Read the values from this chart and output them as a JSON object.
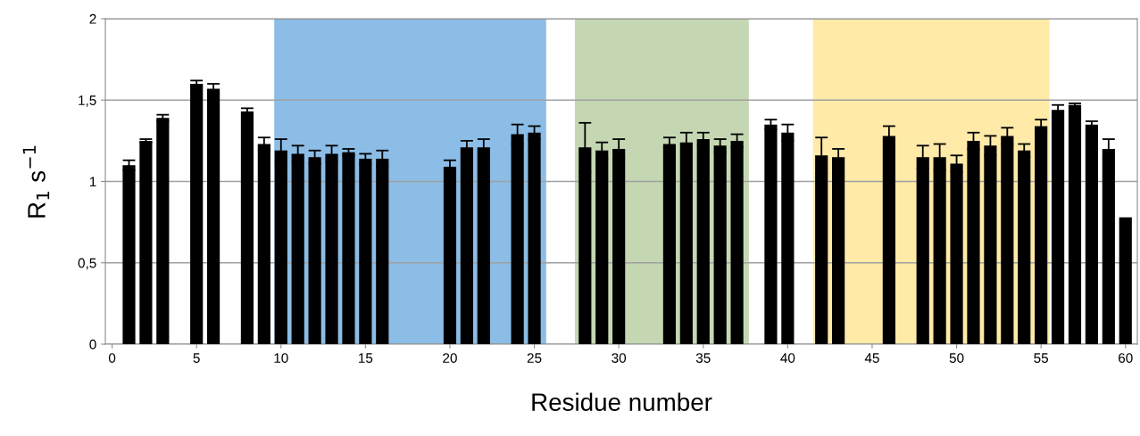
{
  "chart_data": {
    "type": "bar",
    "xlabel": "Residue number",
    "ylabel": "R$_{1}$ s$^{−1}$",
    "x": [
      1,
      2,
      3,
      5,
      6,
      8,
      9,
      10,
      11,
      12,
      13,
      14,
      15,
      16,
      20,
      21,
      22,
      24,
      25,
      28,
      29,
      30,
      33,
      34,
      35,
      36,
      37,
      39,
      40,
      42,
      43,
      46,
      48,
      49,
      50,
      51,
      52,
      53,
      54,
      55,
      56,
      57,
      58,
      59,
      60
    ],
    "values": [
      1.1,
      1.25,
      1.39,
      1.6,
      1.57,
      1.43,
      1.23,
      1.19,
      1.17,
      1.15,
      1.17,
      1.18,
      1.14,
      1.14,
      1.09,
      1.21,
      1.21,
      1.29,
      1.3,
      1.21,
      1.19,
      1.2,
      1.23,
      1.24,
      1.26,
      1.22,
      1.25,
      1.35,
      1.3,
      1.16,
      1.15,
      1.28,
      1.15,
      1.15,
      1.11,
      1.25,
      1.22,
      1.28,
      1.19,
      1.34,
      1.44,
      1.47,
      1.35,
      1.2,
      0.78
    ],
    "errors": [
      0.03,
      0.01,
      0.02,
      0.02,
      0.03,
      0.02,
      0.04,
      0.07,
      0.05,
      0.04,
      0.05,
      0.02,
      0.03,
      0.05,
      0.04,
      0.04,
      0.05,
      0.06,
      0.04,
      0.15,
      0.05,
      0.06,
      0.04,
      0.06,
      0.04,
      0.04,
      0.04,
      0.03,
      0.05,
      0.11,
      0.05,
      0.06,
      0.07,
      0.08,
      0.05,
      0.05,
      0.06,
      0.05,
      0.04,
      0.04,
      0.03,
      0.01,
      0.02,
      0.06,
      null
    ],
    "color": "#000000",
    "xlim": [
      -0.4,
      60.7
    ],
    "xticks": [
      0,
      5,
      10,
      15,
      20,
      25,
      30,
      35,
      40,
      45,
      50,
      55,
      60
    ],
    "ylim": [
      0,
      2
    ],
    "yticks": [
      0,
      {
        "value": 0.5,
        "label": "0,5"
      },
      1,
      {
        "value": 1.5,
        "label": "1,5"
      },
      2
    ],
    "grid": "y",
    "bands": [
      {
        "axis": "x",
        "from": 9.6,
        "to": 25.7,
        "color": "#8bbde6"
      },
      {
        "axis": "x",
        "from": 27.4,
        "to": 37.7,
        "color": "#c4d7b2"
      },
      {
        "axis": "x",
        "from": 41.5,
        "to": 55.5,
        "color": "#ffeaa8"
      }
    ]
  }
}
